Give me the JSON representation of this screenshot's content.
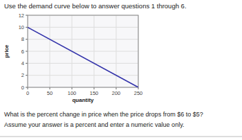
{
  "chart_data": {
    "type": "line",
    "title": "Use the demand curve below to answer questions 1 through 6.",
    "xlabel": "quantity",
    "ylabel": "price",
    "x": [
      0,
      250
    ],
    "values": [
      10,
      0
    ],
    "color": "#3333aa",
    "xlim": [
      0,
      250
    ],
    "ylim": [
      0,
      12
    ],
    "xticks": [
      0,
      50,
      100,
      150,
      200,
      250
    ],
    "yticks": [
      0,
      2,
      4,
      6,
      8,
      10,
      12
    ],
    "grid": true,
    "annotations": [
      "What is the percent change in price when the price drops from $6 to $5?",
      "Assume your answer is a percent and enter a numeric value only."
    ]
  }
}
